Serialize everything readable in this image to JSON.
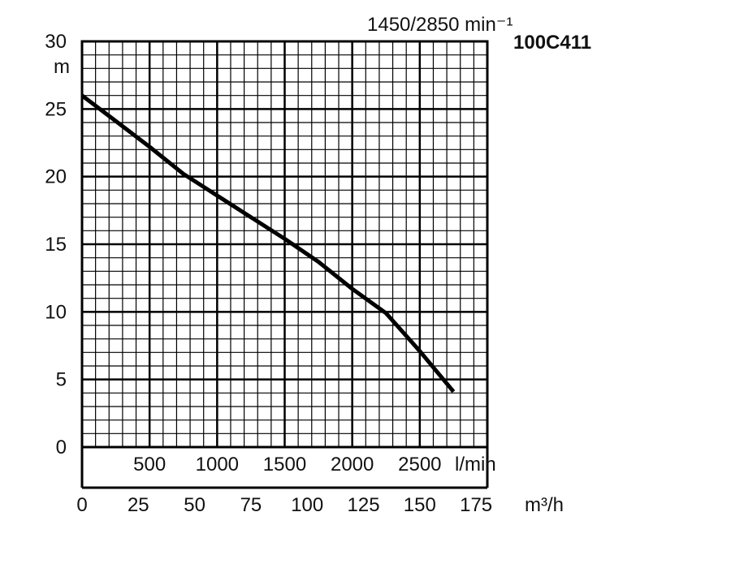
{
  "chart_data": {
    "type": "line",
    "title": "100C411",
    "subtitle": "1450/2850 min⁻¹",
    "ylabel": "m",
    "xlabel": "l/min",
    "x2label": "m³/h",
    "ylim": [
      0,
      30
    ],
    "xlim": [
      0,
      3000
    ],
    "grid": true,
    "y_ticks": [
      "0",
      "5",
      "10",
      "15",
      "20",
      "25",
      "30"
    ],
    "x_ticks": [
      "500",
      "1000",
      "1500",
      "2000",
      "2500"
    ],
    "x2_ticks": [
      "0",
      "25",
      "50",
      "75",
      "100",
      "125",
      "150",
      "175"
    ],
    "series": [
      {
        "name": "100C411",
        "x": [
          0,
          250,
          500,
          750,
          1000,
          1250,
          1500,
          1750,
          2000,
          2250,
          2500,
          2750
        ],
        "y": [
          26,
          24.1,
          22.2,
          20.2,
          18.6,
          17.0,
          15.4,
          13.7,
          11.7,
          9.9,
          7.1,
          4.1
        ]
      }
    ]
  }
}
